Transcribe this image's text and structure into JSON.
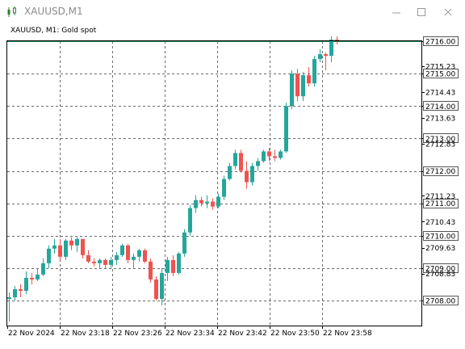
{
  "window": {
    "title": "XAUUSD,M1",
    "colors": {
      "title_text": "#8a8a8a",
      "chart_frame": "#000000",
      "grid": "#6b6b6b"
    },
    "icons": {
      "app": "chart-bars-icon",
      "minimize": "minimize-icon",
      "maximize": "maximize-icon",
      "close": "close-icon"
    }
  },
  "chart_header": "XAUUSD, M1:  Gold spot",
  "chart_data": {
    "type": "candlestick",
    "symbol": "XAUUSD",
    "timeframe": "M1",
    "description": "Gold spot",
    "y_ticks": [
      "2716.00",
      "2715.23",
      "2715.00",
      "2714.43",
      "2714.00",
      "2713.63",
      "2713.00",
      "2712.83",
      "2712.00",
      "2711.23",
      "2711.00",
      "2710.43",
      "2710.00",
      "2709.63",
      "2709.00",
      "2708.83",
      "2708.00"
    ],
    "y_ticks_boxed": [
      "2716.00",
      "2715.00",
      "2714.00",
      "2713.00",
      "2712.00",
      "2711.00",
      "2710.00",
      "2709.00",
      "2708.00"
    ],
    "x_ticks": [
      "22 Nov 2024",
      "22 Nov 23:18",
      "22 Nov 23:26",
      "22 Nov 23:34",
      "22 Nov 23:42",
      "22 Nov 23:50",
      "22 Nov 23:58"
    ],
    "ylim": [
      2707.6,
      2716.3
    ],
    "current_price": 2716.0,
    "colors": {
      "bull": "#26a69a",
      "bear": "#ef5350"
    },
    "candles": [
      [
        2708.05,
        2708.25,
        2707.35,
        2708.1
      ],
      [
        2708.1,
        2708.45,
        2708.0,
        2708.35
      ],
      [
        2708.35,
        2708.5,
        2708.1,
        2708.3
      ],
      [
        2708.3,
        2708.9,
        2708.2,
        2708.7
      ],
      [
        2708.7,
        2708.85,
        2708.5,
        2708.65
      ],
      [
        2708.65,
        2709.0,
        2708.6,
        2708.8
      ],
      [
        2708.8,
        2709.3,
        2708.75,
        2709.15
      ],
      [
        2709.15,
        2709.7,
        2709.0,
        2709.6
      ],
      [
        2709.6,
        2709.9,
        2709.45,
        2709.7
      ],
      [
        2709.7,
        2709.9,
        2709.25,
        2709.35
      ],
      [
        2709.35,
        2709.9,
        2709.25,
        2709.85
      ],
      [
        2709.85,
        2709.95,
        2709.55,
        2709.7
      ],
      [
        2709.7,
        2709.95,
        2709.5,
        2709.9
      ],
      [
        2709.9,
        2709.9,
        2709.3,
        2709.4
      ],
      [
        2709.4,
        2709.55,
        2709.15,
        2709.2
      ],
      [
        2709.2,
        2709.3,
        2709.05,
        2709.15
      ],
      [
        2709.15,
        2709.3,
        2709.0,
        2709.25
      ],
      [
        2709.25,
        2709.3,
        2709.0,
        2709.1
      ],
      [
        2709.1,
        2709.35,
        2709.0,
        2709.25
      ],
      [
        2709.25,
        2709.5,
        2709.1,
        2709.4
      ],
      [
        2709.4,
        2709.75,
        2709.35,
        2709.7
      ],
      [
        2709.7,
        2709.75,
        2709.15,
        2709.25
      ],
      [
        2709.25,
        2709.45,
        2709.0,
        2709.35
      ],
      [
        2709.35,
        2709.6,
        2709.2,
        2709.55
      ],
      [
        2709.55,
        2709.6,
        2709.15,
        2709.2
      ],
      [
        2709.2,
        2709.3,
        2708.55,
        2708.65
      ],
      [
        2708.65,
        2708.75,
        2708.0,
        2708.05
      ],
      [
        2708.05,
        2709.0,
        2707.85,
        2708.85
      ],
      [
        2708.85,
        2709.35,
        2708.6,
        2709.25
      ],
      [
        2709.25,
        2709.4,
        2708.75,
        2708.85
      ],
      [
        2708.85,
        2709.5,
        2708.8,
        2709.45
      ],
      [
        2709.45,
        2710.2,
        2709.35,
        2710.1
      ],
      [
        2710.1,
        2710.95,
        2710.0,
        2710.85
      ],
      [
        2710.85,
        2711.25,
        2710.7,
        2711.1
      ],
      [
        2711.1,
        2711.2,
        2710.9,
        2711.0
      ],
      [
        2711.0,
        2711.25,
        2710.85,
        2711.05
      ],
      [
        2711.05,
        2711.15,
        2710.8,
        2710.9
      ],
      [
        2710.9,
        2711.3,
        2710.85,
        2711.2
      ],
      [
        2711.2,
        2711.85,
        2711.1,
        2711.75
      ],
      [
        2711.75,
        2712.25,
        2711.7,
        2712.15
      ],
      [
        2712.15,
        2712.65,
        2712.05,
        2712.55
      ],
      [
        2712.55,
        2712.65,
        2711.95,
        2712.0
      ],
      [
        2712.0,
        2712.3,
        2711.45,
        2711.65
      ],
      [
        2711.65,
        2712.25,
        2711.55,
        2712.15
      ],
      [
        2712.15,
        2712.4,
        2712.0,
        2712.3
      ],
      [
        2712.3,
        2712.65,
        2712.25,
        2712.6
      ],
      [
        2712.6,
        2712.7,
        2712.3,
        2712.45
      ],
      [
        2712.45,
        2712.65,
        2712.3,
        2712.4
      ],
      [
        2712.4,
        2712.65,
        2712.35,
        2712.6
      ],
      [
        2712.6,
        2714.1,
        2712.55,
        2714.0
      ],
      [
        2714.0,
        2715.1,
        2713.9,
        2715.0
      ],
      [
        2715.0,
        2715.15,
        2714.15,
        2714.3
      ],
      [
        2714.3,
        2715.05,
        2714.15,
        2714.95
      ],
      [
        2714.95,
        2715.2,
        2714.6,
        2714.7
      ],
      [
        2714.7,
        2715.55,
        2714.6,
        2715.45
      ],
      [
        2715.45,
        2715.75,
        2715.35,
        2715.6
      ],
      [
        2715.6,
        2715.65,
        2715.1,
        2715.55
      ],
      [
        2715.55,
        2716.15,
        2715.35,
        2716.05
      ],
      [
        2716.05,
        2716.15,
        2715.9,
        2716.0
      ]
    ]
  }
}
